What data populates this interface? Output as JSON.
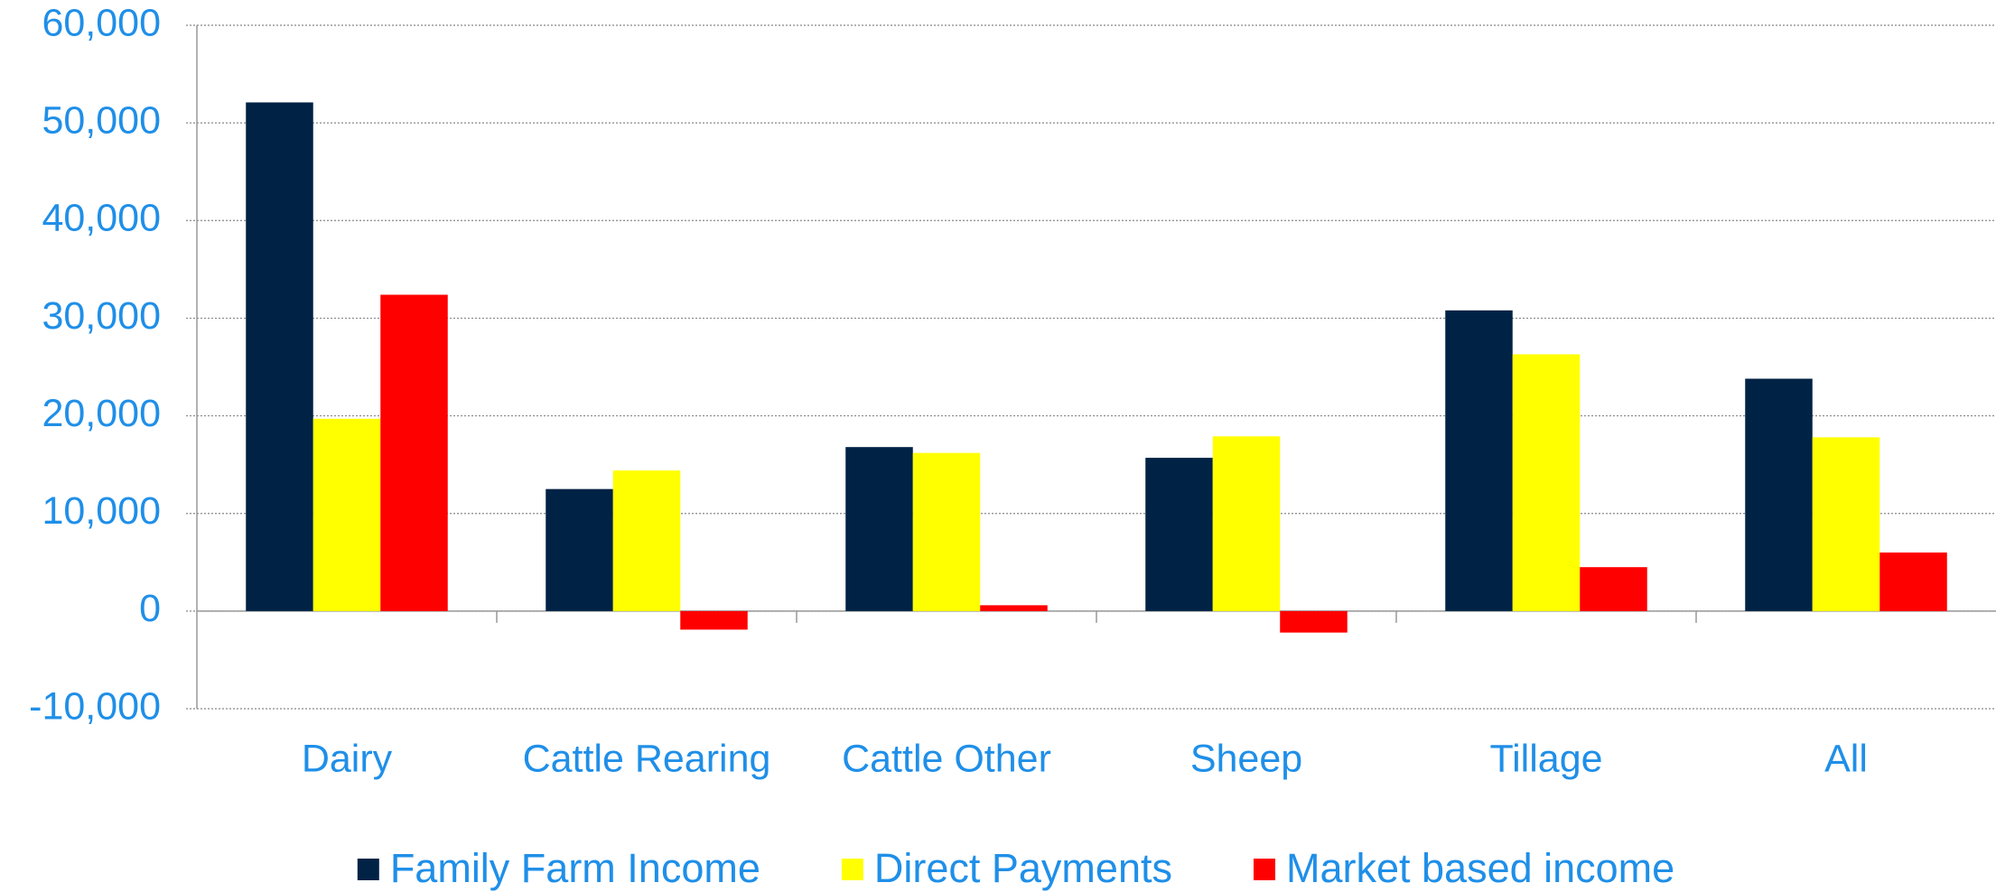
{
  "chart_data": {
    "type": "bar",
    "categories": [
      "Dairy",
      "Cattle Rearing",
      "Cattle Other",
      "Sheep",
      "Tillage",
      "All"
    ],
    "series": [
      {
        "name": "Family Farm Income",
        "color": "#002245",
        "values": [
          52100,
          12500,
          16800,
          15700,
          30800,
          23800
        ]
      },
      {
        "name": "Direct Payments",
        "color": "#ffff00",
        "values": [
          19700,
          14400,
          16200,
          17900,
          26300,
          17800
        ]
      },
      {
        "name": "Market based income",
        "color": "#ff0000",
        "values": [
          32400,
          -1900,
          600,
          -2200,
          4500,
          6000
        ]
      }
    ],
    "ylim": [
      -10000,
      60000
    ],
    "yticks": [
      {
        "value": -10000,
        "label": "-10,000"
      },
      0,
      {
        "value": 10000,
        "label": "10,000"
      },
      {
        "value": 20000,
        "label": "20,000"
      },
      {
        "value": 30000,
        "label": "30,000"
      },
      {
        "value": 40000,
        "label": "40,000"
      },
      {
        "value": 50000,
        "label": "50,000"
      },
      {
        "value": 60000,
        "label": "60,000"
      }
    ],
    "grid": true,
    "legend": "bottom"
  }
}
